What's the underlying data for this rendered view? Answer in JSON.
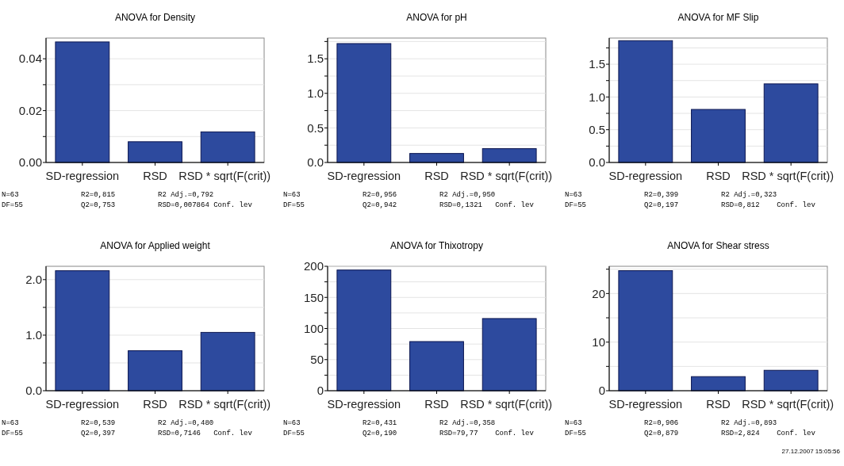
{
  "chart_data": [
    {
      "type": "bar",
      "title": "ANOVA for Density",
      "categories": [
        "SD-regression",
        "RSD",
        "RSD * sqrt(F(crit))"
      ],
      "values": [
        0.0465,
        0.008,
        0.0118
      ],
      "color": "#2d4a9e",
      "ylim": [
        0,
        0.048
      ],
      "yticks": [
        {
          "value": 0,
          "label": "0.00"
        },
        {
          "value": 0.01,
          "label": null
        },
        {
          "value": 0.02,
          "label": "0.02"
        },
        {
          "value": 0.03,
          "label": null
        },
        {
          "value": 0.04,
          "label": "0.04"
        }
      ],
      "grid": "y",
      "annotations": [
        "N=63",
        "DF=55",
        "R2=0,815",
        "Q2=0,753",
        "R2 Adj.=0,792",
        "RSD=0,007864 Conf. lev"
      ]
    },
    {
      "type": "bar",
      "title": "ANOVA for pH",
      "categories": [
        "SD-regression",
        "RSD",
        "RSD * sqrt(F(crit))"
      ],
      "values": [
        1.72,
        0.13,
        0.2
      ],
      "color": "#2d4a9e",
      "ylim": [
        0,
        1.8
      ],
      "yticks": [
        {
          "value": 0,
          "label": "0.0"
        },
        {
          "value": 0.25,
          "label": null
        },
        {
          "value": 0.5,
          "label": "0.5"
        },
        {
          "value": 0.75,
          "label": null
        },
        {
          "value": 1,
          "label": "1.0"
        },
        {
          "value": 1.25,
          "label": null
        },
        {
          "value": 1.5,
          "label": "1.5"
        },
        {
          "value": 1.75,
          "label": null
        }
      ],
      "grid": "y",
      "annotations": [
        "N=63",
        "DF=55",
        "R2=0,956",
        "Q2=0,942",
        "R2 Adj.=0,950",
        "RSD=0,1321   Conf. lev"
      ]
    },
    {
      "type": "bar",
      "title": "ANOVA for MF Slip",
      "categories": [
        "SD-regression",
        "RSD",
        "RSD * sqrt(F(crit))"
      ],
      "values": [
        1.86,
        0.81,
        1.2
      ],
      "color": "#2d4a9e",
      "ylim": [
        0,
        1.9
      ],
      "yticks": [
        {
          "value": 0,
          "label": "0.0"
        },
        {
          "value": 0.25,
          "label": null
        },
        {
          "value": 0.5,
          "label": "0.5"
        },
        {
          "value": 0.75,
          "label": null
        },
        {
          "value": 1,
          "label": "1.0"
        },
        {
          "value": 1.25,
          "label": null
        },
        {
          "value": 1.5,
          "label": "1.5"
        },
        {
          "value": 1.75,
          "label": null
        }
      ],
      "grid": "y",
      "annotations": [
        "N=63",
        "DF=55",
        "R2=0,399",
        "Q2=0,197",
        "R2 Adj.=0,323",
        "RSD=0,812    Conf. lev"
      ]
    },
    {
      "type": "bar",
      "title": "ANOVA for Applied weight",
      "categories": [
        "SD-regression",
        "RSD",
        "RSD * sqrt(F(crit))"
      ],
      "values": [
        2.16,
        0.72,
        1.05
      ],
      "color": "#2d4a9e",
      "ylim": [
        0,
        2.24
      ],
      "yticks": [
        {
          "value": 0,
          "label": "0.0"
        },
        {
          "value": 0.5,
          "label": null
        },
        {
          "value": 1,
          "label": "1.0"
        },
        {
          "value": 1.5,
          "label": null
        },
        {
          "value": 2,
          "label": "2.0"
        }
      ],
      "grid": "y",
      "annotations": [
        "N=63",
        "DF=55",
        "R2=0,539",
        "Q2=0,397",
        "R2 Adj.=0,480",
        "RSD=0,7146   Conf. lev"
      ]
    },
    {
      "type": "bar",
      "title": "ANOVA for Thixotropy",
      "categories": [
        "SD-regression",
        "RSD",
        "RSD * sqrt(F(crit))"
      ],
      "values": [
        194,
        79,
        116
      ],
      "color": "#2d4a9e",
      "ylim": [
        0,
        200
      ],
      "yticks": [
        0,
        {
          "value": 25,
          "label": null
        },
        50,
        {
          "value": 75,
          "label": null
        },
        100,
        {
          "value": 125,
          "label": null
        },
        150,
        {
          "value": 175,
          "label": null
        },
        200
      ],
      "grid": "y",
      "annotations": [
        "N=63",
        "DF=55",
        "R2=0,431",
        "Q2=0,190",
        "R2 Adj.=0,358",
        "RSD=79,77    Conf. lev"
      ]
    },
    {
      "type": "bar",
      "title": "ANOVA for Shear stress",
      "categories": [
        "SD-regression",
        "RSD",
        "RSD * sqrt(F(crit))"
      ],
      "values": [
        24.7,
        2.9,
        4.2
      ],
      "color": "#2d4a9e",
      "ylim": [
        0,
        25.6
      ],
      "yticks": [
        0,
        {
          "value": 5,
          "label": null
        },
        10,
        {
          "value": 15,
          "label": null
        },
        20,
        {
          "value": 25,
          "label": null
        }
      ],
      "grid": "y",
      "annotations": [
        "N=63",
        "DF=55",
        "R2=0,906",
        "Q2=0,879",
        "R2 Adj.=0,893",
        "RSD=2,824    Conf. lev",
        "27.12.2007 15:05:56"
      ]
    }
  ]
}
